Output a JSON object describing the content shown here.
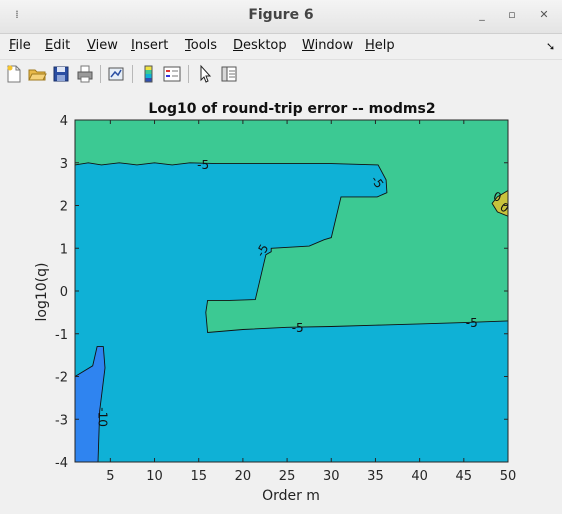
{
  "window": {
    "title": "Figure 6"
  },
  "menu": [
    {
      "u": "F",
      "rest": "ile"
    },
    {
      "u": "E",
      "rest": "dit"
    },
    {
      "u": "V",
      "rest": "iew"
    },
    {
      "u": "I",
      "rest": "nsert"
    },
    {
      "u": "T",
      "rest": "ools"
    },
    {
      "u": "D",
      "rest": "esktop"
    },
    {
      "u": "W",
      "rest": "indow"
    },
    {
      "u": "H",
      "rest": "elp"
    }
  ],
  "toolbar_icons": [
    "new-figure-icon",
    "open-file-icon",
    "save-icon",
    "print-icon",
    "link-plot-icon",
    "insert-colorbar-icon",
    "insert-legend-icon",
    "edit-plot-arrow-icon",
    "property-inspector-icon"
  ],
  "colors": {
    "region_low": "#2f84f0",
    "region_mid": "#0fb1d6",
    "region_high": "#3cc993",
    "region_top": "#c8c23c"
  },
  "chart_data": {
    "type": "contourf",
    "title": "Log10 of round-trip error -- modms2",
    "xlabel": "Order m",
    "ylabel": "log10(q)",
    "xlim": [
      1,
      50
    ],
    "ylim": [
      -4,
      4
    ],
    "xticks": [
      5,
      10,
      15,
      20,
      25,
      30,
      35,
      40,
      45,
      50
    ],
    "yticks": [
      -4,
      -3,
      -2,
      -1,
      0,
      1,
      2,
      3,
      4
    ],
    "levels": [
      -10,
      -5,
      0
    ],
    "contour_labels": [
      {
        "text": "-5",
        "x": 15.5,
        "y": 2.95,
        "angle": 0
      },
      {
        "text": "-5",
        "x": 35.2,
        "y": 2.55,
        "angle": 55
      },
      {
        "text": "-5",
        "x": 22.2,
        "y": 0.95,
        "angle": -60
      },
      {
        "text": "-5",
        "x": 26.2,
        "y": -0.87,
        "angle": 0
      },
      {
        "text": "-5",
        "x": 45.9,
        "y": -0.75,
        "angle": 0
      },
      {
        "text": "0",
        "x": 48.8,
        "y": 2.2,
        "angle": 20
      },
      {
        "text": "0",
        "x": 49.6,
        "y": 1.95,
        "angle": 35
      },
      {
        "text": "-10",
        "x": 4.1,
        "y": -2.95,
        "angle": 90
      }
    ],
    "regions": [
      {
        "level": "-10",
        "points": [
          [
            1,
            -4
          ],
          [
            1,
            -2
          ],
          [
            3,
            -1.75
          ],
          [
            3.5,
            -1.3
          ],
          [
            4.2,
            -1.3
          ],
          [
            4.4,
            -1.8
          ],
          [
            3.8,
            -2.8
          ],
          [
            3.6,
            -4
          ]
        ]
      },
      {
        "level": "0",
        "points": [
          [
            50,
            2.35
          ],
          [
            48.8,
            2.2
          ],
          [
            48.2,
            2.05
          ],
          [
            48.8,
            1.85
          ],
          [
            50,
            1.75
          ]
        ]
      }
    ],
    "contour_lines": [
      {
        "level": "-5",
        "points": [
          [
            1,
            2.95
          ],
          [
            2.5,
            3
          ],
          [
            4,
            2.95
          ],
          [
            6,
            3
          ],
          [
            8,
            2.95
          ],
          [
            10,
            3
          ],
          [
            12,
            2.95
          ],
          [
            14,
            3
          ],
          [
            17,
            2.98
          ],
          [
            20,
            2.98
          ],
          [
            25,
            2.98
          ],
          [
            30,
            2.98
          ],
          [
            35.3,
            2.95
          ],
          [
            36.2,
            2.6
          ],
          [
            36.3,
            2.3
          ],
          [
            35.2,
            2.2
          ],
          [
            31.1,
            2.2
          ],
          [
            30,
            1.25
          ],
          [
            29.2,
            1.2
          ],
          [
            27.5,
            1.05
          ],
          [
            23.2,
            1
          ],
          [
            23.2,
            0.92
          ],
          [
            22.6,
            0.85
          ],
          [
            21.4,
            -0.2
          ],
          [
            18.5,
            -0.22
          ],
          [
            16,
            -0.22
          ],
          [
            15.8,
            -0.5
          ],
          [
            16,
            -0.97
          ],
          [
            20,
            -0.9
          ],
          [
            25,
            -0.85
          ],
          [
            30,
            -0.83
          ],
          [
            35,
            -0.8
          ],
          [
            40,
            -0.77
          ],
          [
            45,
            -0.74
          ],
          [
            50,
            -0.7
          ]
        ]
      },
      {
        "level": "-10",
        "points": [
          [
            1,
            -2
          ],
          [
            3,
            -1.75
          ],
          [
            3.5,
            -1.3
          ],
          [
            4.2,
            -1.3
          ],
          [
            4.4,
            -1.8
          ],
          [
            3.8,
            -2.8
          ],
          [
            3.6,
            -4
          ]
        ]
      },
      {
        "level": "0",
        "points": [
          [
            50,
            2.35
          ],
          [
            48.8,
            2.2
          ],
          [
            48.2,
            2.05
          ],
          [
            48.8,
            1.85
          ],
          [
            50,
            1.75
          ]
        ]
      }
    ]
  }
}
